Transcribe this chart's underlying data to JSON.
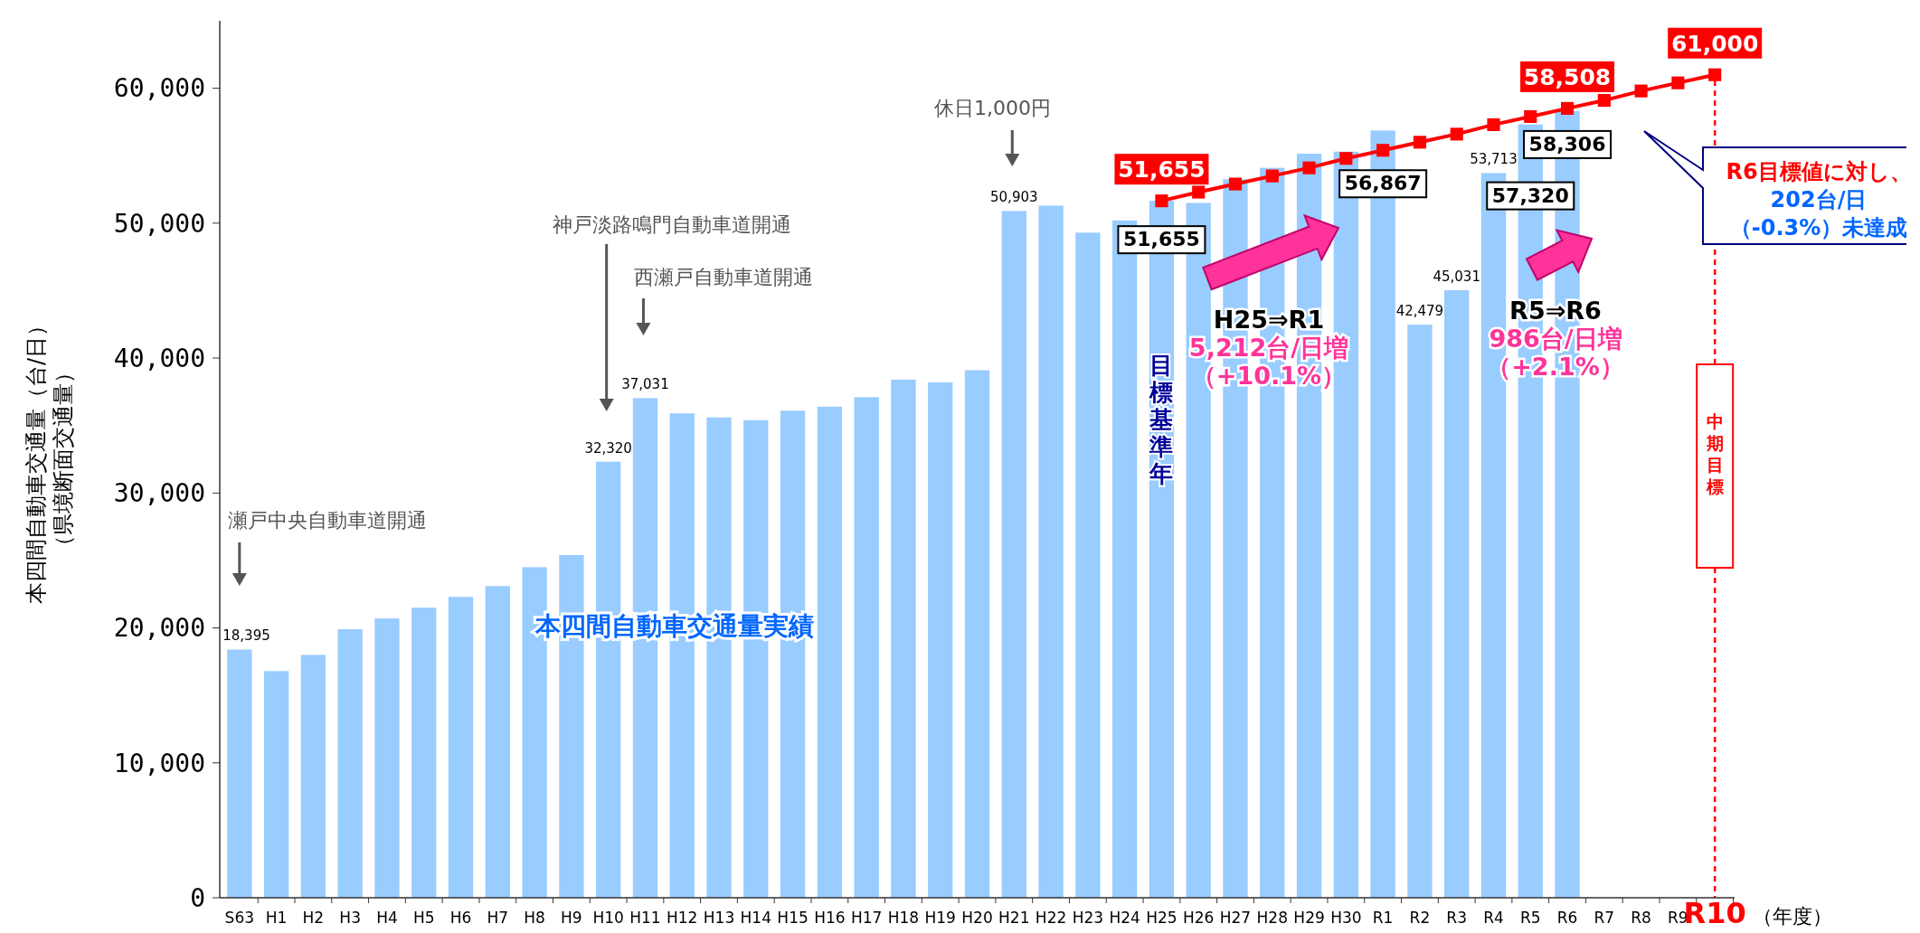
{
  "chart_data": {
    "type": "bar",
    "ylabel": "本四間自動車交通量（台/日）（県境断面交通量）",
    "xlabel": "（年度）",
    "categories": [
      "S63",
      "H1",
      "H2",
      "H3",
      "H4",
      "H5",
      "H6",
      "H7",
      "H8",
      "H9",
      "H10",
      "H11",
      "H12",
      "H13",
      "H14",
      "H15",
      "H16",
      "H17",
      "H18",
      "H19",
      "H20",
      "H21",
      "H22",
      "H23",
      "H24",
      "H25",
      "H26",
      "H27",
      "H28",
      "H29",
      "H30",
      "R1",
      "R2",
      "R3",
      "R4",
      "R5",
      "R6",
      "R7",
      "R8",
      "R9",
      "R10"
    ],
    "series": [
      {
        "name": "本四間自動車交通量実績",
        "color": "#99ccff",
        "values": [
          18395,
          16800,
          18000,
          19900,
          20700,
          21500,
          22300,
          23100,
          24500,
          25400,
          32320,
          37031,
          35900,
          35600,
          35400,
          36100,
          36400,
          37100,
          38400,
          38200,
          39100,
          50903,
          51300,
          49300,
          50200,
          51655,
          51500,
          53250,
          54100,
          55150,
          55300,
          56867,
          42479,
          45031,
          53713,
          57320,
          58306,
          null,
          null,
          null,
          null
        ],
        "value_labels": [
          "18,395",
          null,
          null,
          null,
          null,
          null,
          null,
          null,
          null,
          null,
          "32,320",
          "37,031",
          null,
          null,
          null,
          null,
          null,
          null,
          null,
          null,
          null,
          "50,903",
          null,
          null,
          null,
          "51,655",
          null,
          null,
          null,
          null,
          null,
          "56,867",
          "42,479",
          "45,031",
          "53,713",
          "57,320",
          "58,306",
          null,
          null,
          null,
          null
        ]
      },
      {
        "type": "line",
        "color": "#ff0000",
        "values": [
          null,
          null,
          null,
          null,
          null,
          null,
          null,
          null,
          null,
          null,
          null,
          null,
          null,
          null,
          null,
          null,
          null,
          null,
          null,
          null,
          null,
          null,
          null,
          null,
          null,
          51655,
          52300,
          52900,
          53500,
          54100,
          54800,
          55400,
          56000,
          56600,
          57300,
          57900,
          58508,
          59100,
          59800,
          60400,
          61000
        ],
        "value_labels": [
          null,
          null,
          null,
          null,
          null,
          null,
          null,
          null,
          null,
          null,
          null,
          null,
          null,
          null,
          null,
          null,
          null,
          null,
          null,
          null,
          null,
          null,
          null,
          null,
          null,
          "51,655",
          null,
          null,
          null,
          null,
          null,
          null,
          null,
          null,
          null,
          null,
          "58,508",
          null,
          null,
          null,
          "61,000"
        ]
      }
    ],
    "ylim": [
      0,
      65000
    ],
    "yticks": [
      0,
      {
        "value": 10000,
        "label": "10,000"
      },
      {
        "value": 20000,
        "label": "20,000"
      },
      {
        "value": 30000,
        "label": "30,000"
      },
      {
        "value": 40000,
        "label": "40,000"
      },
      {
        "value": 50000,
        "label": "50,000"
      },
      {
        "value": 60000,
        "label": "60,000"
      }
    ],
    "marker": "square",
    "ref_lines": [
      {
        "axis": "x",
        "value": "R10",
        "label": "中期目標",
        "color": "#ff0000",
        "line_style": "dashed"
      }
    ],
    "annotations": [
      "瀬戸中央自動車道開通",
      "神戸淡路鳴門自動車道開通",
      "西瀬戸自動車道開通",
      "休日1,000円",
      "目標基準年",
      "H25⇒R1 5,212台/日増（+10.1%）",
      "R5⇒R6 986台/日増（+2.1%）",
      "R6目標値に対し、202台/日（-0.3%）未達成"
    ]
  }
}
